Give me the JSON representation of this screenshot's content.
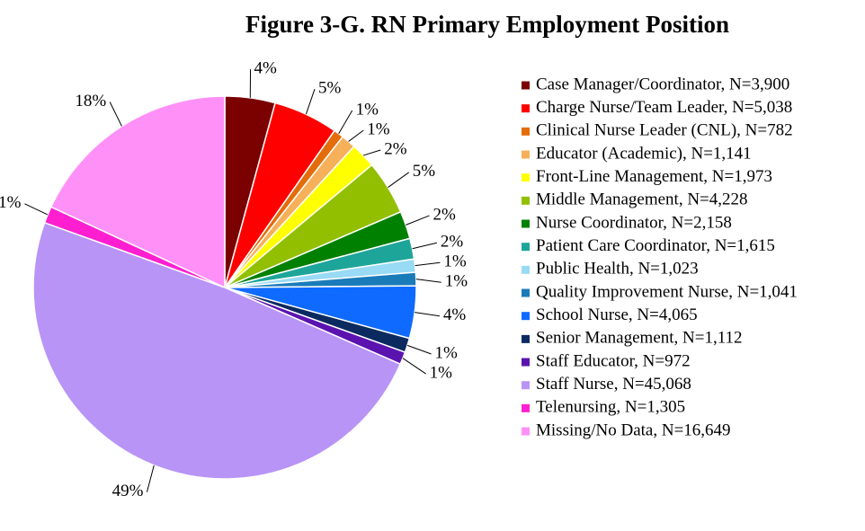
{
  "chart_data": {
    "type": "pie",
    "title": "Figure 3-G. RN Primary Employment Position",
    "categories": [
      "Case Manager/Coordinator, N=3,900",
      "Charge Nurse/Team Leader, N=5,038",
      "Clinical Nurse Leader (CNL), N=782",
      "Educator (Academic), N=1,141",
      "Front-Line Management, N=1,973",
      "Middle Management, N=4,228",
      "Nurse Coordinator, N=2,158",
      "Patient Care Coordinator, N=1,615",
      "Public Health, N=1,023",
      "Quality Improvement Nurse, N=1,041",
      "School Nurse, N=4,065",
      "Senior Management, N=1,112",
      "Staff Educator, N=972",
      "Staff Nurse, N=45,068",
      "Telenursing, N=1,305",
      "Missing/No Data, N=16,649"
    ],
    "values": [
      4.24,
      5.47,
      0.85,
      1.24,
      2.14,
      4.59,
      2.34,
      1.75,
      1.11,
      1.13,
      4.42,
      1.21,
      1.06,
      48.95,
      1.42,
      18.08
    ],
    "value_labels": [
      "4%",
      "5%",
      "1%",
      "1%",
      "2%",
      "5%",
      "2%",
      "2%",
      "1%",
      "1%",
      "4%",
      "1%",
      "1%",
      "49%",
      "1%",
      "18%"
    ],
    "colors": [
      "#7b0000",
      "#ff0000",
      "#e46c0a",
      "#f7b05a",
      "#ffff00",
      "#92c000",
      "#008000",
      "#1ea59a",
      "#99daf5",
      "#1a7bb9",
      "#0f6bff",
      "#0b2a60",
      "#5b13b0",
      "#b894f6",
      "#ff1fd0",
      "#ff90f8"
    ],
    "legend": "right"
  }
}
